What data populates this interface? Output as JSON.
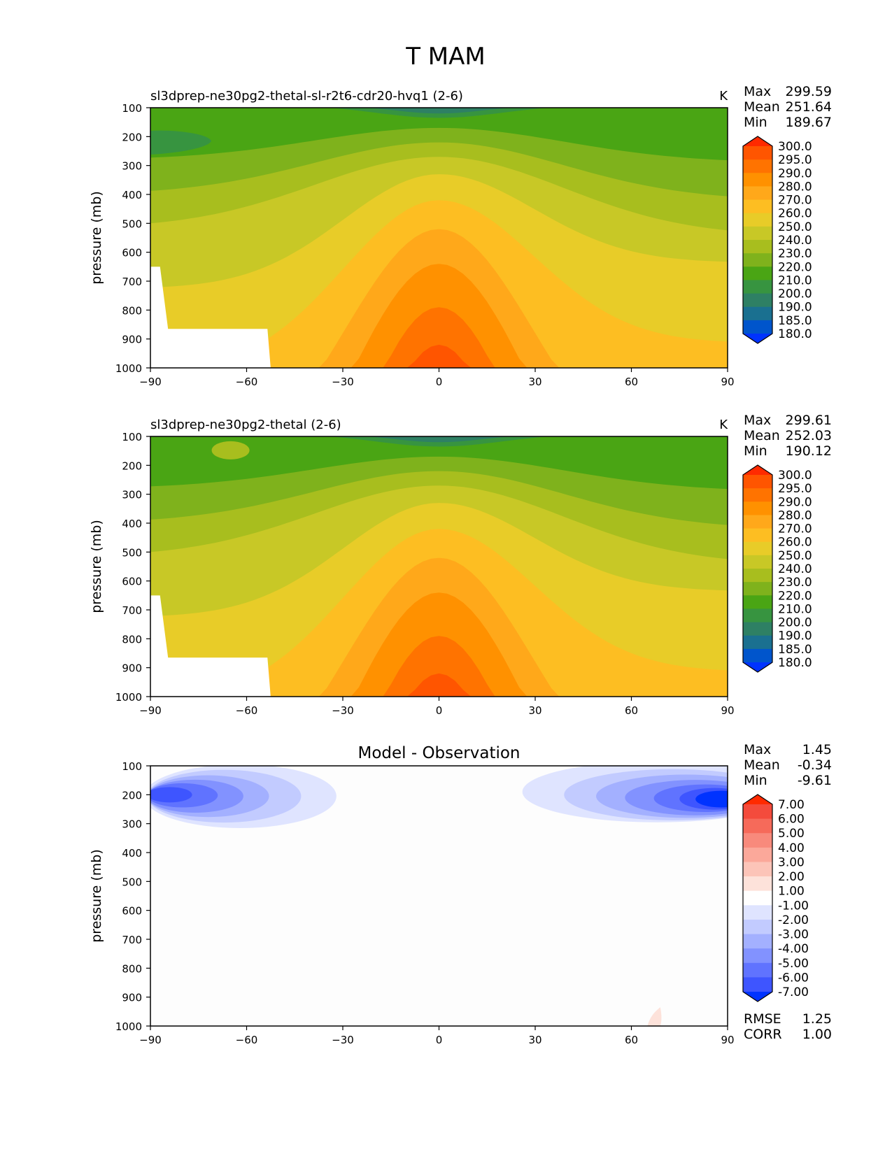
{
  "page_title": "T MAM",
  "chart_data": [
    {
      "type": "contour",
      "title": "sl3dprep-ne30pg2-thetal-sl-r2t6-cdr20-hvq1 (2-6)",
      "units": "K",
      "xlabel": "",
      "ylabel": "pressure (mb)",
      "xlim": [
        -90,
        90
      ],
      "ylim": [
        1000,
        100
      ],
      "x_ticks": [
        "−90",
        "−60",
        "−30",
        "0",
        "30",
        "60",
        "90"
      ],
      "y_ticks": [
        "100",
        "200",
        "300",
        "400",
        "500",
        "600",
        "700",
        "800",
        "900",
        "1000"
      ],
      "stats": [
        {
          "label": "Max",
          "value": "299.59"
        },
        {
          "label": "Mean",
          "value": "251.64"
        },
        {
          "label": "Min",
          "value": "189.67"
        }
      ],
      "colorbar": {
        "levels": [
          "300.0",
          "295.0",
          "290.0",
          "280.0",
          "270.0",
          "260.0",
          "250.0",
          "240.0",
          "230.0",
          "220.0",
          "210.0",
          "200.0",
          "190.0",
          "185.0",
          "180.0"
        ],
        "colors": [
          "#ff2a00",
          "#ff5500",
          "#ff7300",
          "#ff9100",
          "#ffa81a",
          "#fdbe22",
          "#e8cc28",
          "#c8c826",
          "#a8be1e",
          "#7fb21c",
          "#4aa514",
          "#379440",
          "#2e8064",
          "#1a7090",
          "#0055cc",
          "#0033ff"
        ]
      },
      "bottom_stats": []
    },
    {
      "type": "contour",
      "title": "sl3dprep-ne30pg2-thetal (2-6)",
      "units": "K",
      "xlabel": "",
      "ylabel": "pressure (mb)",
      "xlim": [
        -90,
        90
      ],
      "ylim": [
        1000,
        100
      ],
      "x_ticks": [
        "−90",
        "−60",
        "−30",
        "0",
        "30",
        "60",
        "90"
      ],
      "y_ticks": [
        "100",
        "200",
        "300",
        "400",
        "500",
        "600",
        "700",
        "800",
        "900",
        "1000"
      ],
      "stats": [
        {
          "label": "Max",
          "value": "299.61"
        },
        {
          "label": "Mean",
          "value": "252.03"
        },
        {
          "label": "Min",
          "value": "190.12"
        }
      ],
      "colorbar": {
        "levels": [
          "300.0",
          "295.0",
          "290.0",
          "280.0",
          "270.0",
          "260.0",
          "250.0",
          "240.0",
          "230.0",
          "220.0",
          "210.0",
          "200.0",
          "190.0",
          "185.0",
          "180.0"
        ],
        "colors": [
          "#ff2a00",
          "#ff5500",
          "#ff7300",
          "#ff9100",
          "#ffa81a",
          "#fdbe22",
          "#e8cc28",
          "#c8c826",
          "#a8be1e",
          "#7fb21c",
          "#4aa514",
          "#379440",
          "#2e8064",
          "#1a7090",
          "#0055cc",
          "#0033ff"
        ]
      },
      "bottom_stats": []
    },
    {
      "type": "contour",
      "title": "Model - Observation",
      "units": "",
      "xlabel": "",
      "ylabel": "pressure (mb)",
      "xlim": [
        -90,
        90
      ],
      "ylim": [
        1000,
        100
      ],
      "x_ticks": [
        "−90",
        "−60",
        "−30",
        "0",
        "30",
        "60",
        "90"
      ],
      "y_ticks": [
        "100",
        "200",
        "300",
        "400",
        "500",
        "600",
        "700",
        "800",
        "900",
        "1000"
      ],
      "stats": [
        {
          "label": "Max",
          "value": "1.45"
        },
        {
          "label": "Mean",
          "value": "-0.34"
        },
        {
          "label": "Min",
          "value": "-9.61"
        }
      ],
      "colorbar": {
        "levels": [
          "7.00",
          "6.00",
          "5.00",
          "4.00",
          "3.00",
          "2.00",
          "1.00",
          "-1.00",
          "-2.00",
          "-3.00",
          "-4.00",
          "-5.00",
          "-6.00",
          "-7.00"
        ],
        "colors": [
          "#ff2a00",
          "#f44b3c",
          "#f66a5a",
          "#f88a7c",
          "#fba89a",
          "#fcc4b8",
          "#fde2da",
          "#ffffff",
          "#dfe4ff",
          "#c2cbff",
          "#a3b0ff",
          "#8292ff",
          "#6073ff",
          "#3e55ff",
          "#0033ff"
        ]
      },
      "bottom_stats": [
        {
          "label": "RMSE",
          "value": "1.25"
        },
        {
          "label": "CORR",
          "value": "1.00"
        }
      ]
    }
  ]
}
